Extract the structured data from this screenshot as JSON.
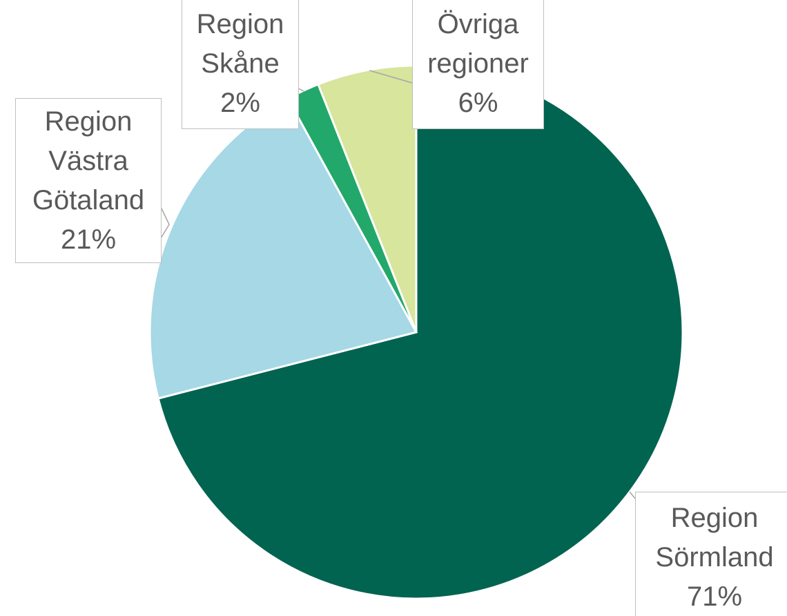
{
  "chart_data": {
    "type": "pie",
    "categories": [
      "Region Sörmland",
      "Region Västra Götaland",
      "Region Skåne",
      "Övriga regioner"
    ],
    "values": [
      71,
      21,
      2,
      6
    ],
    "value_labels": [
      "71%",
      "21%",
      "2%",
      "6%"
    ],
    "colors": [
      "#006450",
      "#a6d8e6",
      "#22a86a",
      "#d7e59d"
    ]
  }
}
